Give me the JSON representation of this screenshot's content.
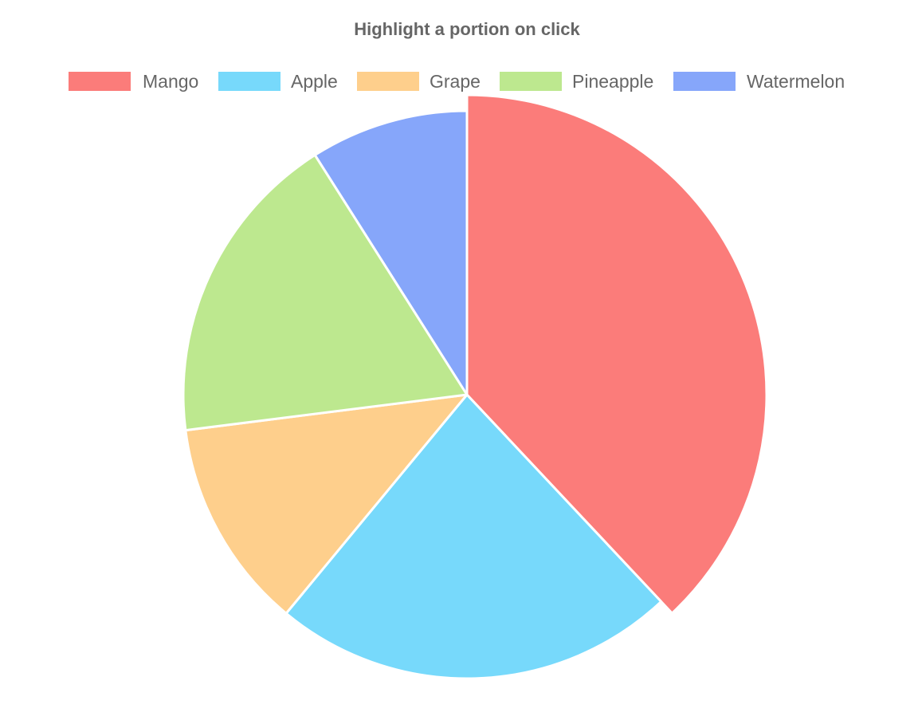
{
  "chart_data": {
    "type": "pie",
    "title": "Highlight a portion on click",
    "legend_position": "top",
    "categories": [
      "Mango",
      "Apple",
      "Grape",
      "Pineapple",
      "Watermelon"
    ],
    "values": [
      38,
      23,
      12,
      18,
      9
    ],
    "colors": [
      "#fb7c7a",
      "#77d9fb",
      "#fecf8c",
      "#bde88f",
      "#86a6fa"
    ],
    "highlighted_category": "Mango"
  }
}
